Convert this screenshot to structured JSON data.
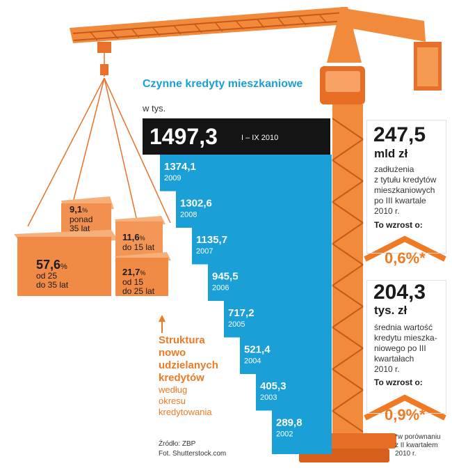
{
  "chart_data": {
    "type": "bar",
    "title": "Czynne kredyty mieszkaniowe",
    "unit": "w tys.",
    "highlight": {
      "value": "1497,3",
      "label": "I – IX 2010"
    },
    "bars": [
      {
        "value": "1374,1",
        "year": "2009"
      },
      {
        "value": "1302,6",
        "year": "2008"
      },
      {
        "value": "1135,7",
        "year": "2007"
      },
      {
        "value": "945,5",
        "year": "2006"
      },
      {
        "value": "717,2",
        "year": "2005"
      },
      {
        "value": "521,4",
        "year": "2004"
      },
      {
        "value": "405,3",
        "year": "2003"
      },
      {
        "value": "289,8",
        "year": "2002"
      }
    ]
  },
  "stat1": {
    "value": "247,5",
    "unit": "mld zł",
    "desc": [
      "zadłużenia",
      "z tytułu kredytów",
      "mieszkaniowych",
      "po III kwartale",
      "2010 r."
    ],
    "growth_label": "To wzrost o:",
    "growth": "0,6%*"
  },
  "stat2": {
    "value": "204,3",
    "unit": "tys. zł",
    "desc": [
      "średnia wartość",
      "kredytu mieszka-",
      "niowego po III",
      "kwartałach",
      "2010 r."
    ],
    "growth_label": "To wzrost o:",
    "growth": "0,9%*"
  },
  "structure": {
    "title": [
      "Struktura",
      "nowo",
      "udzielanych",
      "kredytów"
    ],
    "sub": [
      "według",
      "okresu",
      "kredytowania"
    ],
    "boxes": [
      {
        "value": "9,1",
        "pct": "%",
        "label": [
          "ponad",
          "35 lat"
        ]
      },
      {
        "value": "11,6",
        "pct": "%",
        "label": [
          "do 15 lat"
        ]
      },
      {
        "value": "57,6",
        "pct": "%",
        "label": [
          "od 25",
          "do 35 lat"
        ]
      },
      {
        "value": "21,7",
        "pct": "%",
        "label": [
          "od 15",
          "do 25 lat"
        ]
      }
    ]
  },
  "footnote": [
    "*w porównaniu",
    "z II kwartałem",
    "2010 r."
  ],
  "source": "Źródło: ZBP",
  "photo": "Fot. Shutterstock.com",
  "colors": {
    "blue": "#1a9fd6",
    "orange": "#f07a23",
    "black": "#141414"
  }
}
